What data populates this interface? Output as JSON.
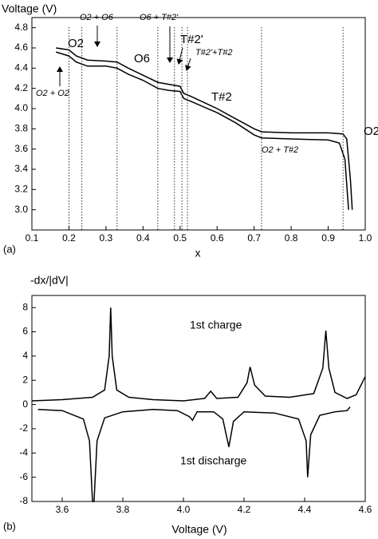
{
  "chart_data": [
    {
      "type": "line",
      "panel_label": "(a)",
      "ylabel": "Voltage (V)",
      "xlabel": "x",
      "xlim": [
        0.1,
        1.0
      ],
      "ylim": [
        2.8,
        4.9
      ],
      "xticks": [
        0.1,
        0.2,
        0.3,
        0.4,
        0.5,
        0.6,
        0.7,
        0.8,
        0.9,
        {
          "value": 1.0,
          "label": "1.0"
        }
      ],
      "yticks": [
        {
          "value": 3.0,
          "label": "3.0"
        },
        3.2,
        3.4,
        3.6,
        3.8,
        {
          "value": 4.0,
          "label": "4.0"
        },
        4.2,
        4.4,
        4.6,
        4.8
      ],
      "series": [
        {
          "color": "#000000",
          "x": [
            0.165,
            0.2,
            0.22,
            0.25,
            0.3,
            0.33,
            0.36,
            0.4,
            0.44,
            0.47,
            0.5,
            0.51,
            0.53,
            0.6,
            0.65,
            0.7,
            0.72,
            0.8,
            0.9,
            0.94,
            0.95,
            0.96,
            0.965
          ],
          "values": [
            4.6,
            4.58,
            4.52,
            4.48,
            4.47,
            4.46,
            4.4,
            4.33,
            4.26,
            4.24,
            4.22,
            4.15,
            4.12,
            4.0,
            3.9,
            3.8,
            3.77,
            3.76,
            3.76,
            3.75,
            3.7,
            3.3,
            3.0
          ]
        },
        {
          "color": "#000000",
          "x": [
            0.165,
            0.2,
            0.22,
            0.25,
            0.3,
            0.33,
            0.36,
            0.4,
            0.44,
            0.47,
            0.5,
            0.51,
            0.53,
            0.6,
            0.65,
            0.7,
            0.72,
            0.8,
            0.9,
            0.93,
            0.945,
            0.955
          ],
          "values": [
            4.56,
            4.52,
            4.46,
            4.42,
            4.42,
            4.4,
            4.34,
            4.28,
            4.2,
            4.18,
            4.17,
            4.1,
            4.07,
            3.96,
            3.86,
            3.74,
            3.71,
            3.7,
            3.69,
            3.66,
            3.5,
            3.0
          ]
        }
      ],
      "boundaries": [
        0.2,
        0.235,
        0.33,
        0.44,
        0.485,
        0.505,
        0.52,
        0.72,
        0.94
      ],
      "annotations": [
        "O2",
        "O2 + O6",
        "O6",
        "O6 + T#2'",
        "T#2'",
        "T#2'+T#2",
        "T#2",
        "O2 + T#2",
        "O2",
        "O2 + O2"
      ]
    },
    {
      "type": "line",
      "panel_label": "(b)",
      "ylabel": "-dx/|dV|",
      "xlabel": "Voltage (V)",
      "xlim": [
        3.5,
        4.6
      ],
      "ylim": [
        -8,
        9
      ],
      "xticks": [
        3.6,
        3.8,
        {
          "value": 4.0,
          "label": "4.0"
        },
        4.2,
        4.4,
        4.6
      ],
      "yticks": [
        -8,
        -6,
        -4,
        -2,
        0,
        2,
        4,
        6,
        8
      ],
      "series": [
        {
          "color": "#000000",
          "x": [
            3.5,
            3.6,
            3.7,
            3.74,
            3.755,
            3.76,
            3.765,
            3.78,
            3.82,
            3.9,
            4.0,
            4.07,
            4.09,
            4.11,
            4.18,
            4.21,
            4.22,
            4.235,
            4.27,
            4.35,
            4.43,
            4.46,
            4.47,
            4.48,
            4.5,
            4.54,
            4.57,
            4.6
          ],
          "values": [
            0.3,
            0.4,
            0.6,
            1.2,
            4,
            8,
            4,
            1.2,
            0.6,
            0.4,
            0.3,
            0.5,
            1.1,
            0.5,
            0.6,
            1.8,
            3.1,
            1.6,
            0.7,
            0.6,
            0.9,
            3,
            6.1,
            3,
            1.0,
            0.5,
            0.8,
            2.3
          ]
        },
        {
          "color": "#000000",
          "x": [
            3.52,
            3.6,
            3.67,
            3.69,
            3.7,
            3.705,
            3.715,
            3.74,
            3.8,
            3.9,
            3.98,
            4.02,
            4.03,
            4.045,
            4.1,
            4.13,
            4.15,
            4.165,
            4.2,
            4.3,
            4.38,
            4.405,
            4.41,
            4.42,
            4.45,
            4.5,
            4.54,
            4.55
          ],
          "values": [
            -0.4,
            -0.5,
            -1.2,
            -3,
            -8,
            -8,
            -3,
            -1.1,
            -0.6,
            -0.4,
            -0.5,
            -1.0,
            -1.3,
            -0.6,
            -0.6,
            -1.2,
            -3.5,
            -1.4,
            -0.6,
            -0.7,
            -1.2,
            -3,
            -6,
            -2.5,
            -0.9,
            -0.6,
            -0.5,
            -0.2
          ]
        }
      ],
      "annotations": [
        "1st charge",
        "1st discharge"
      ]
    }
  ]
}
